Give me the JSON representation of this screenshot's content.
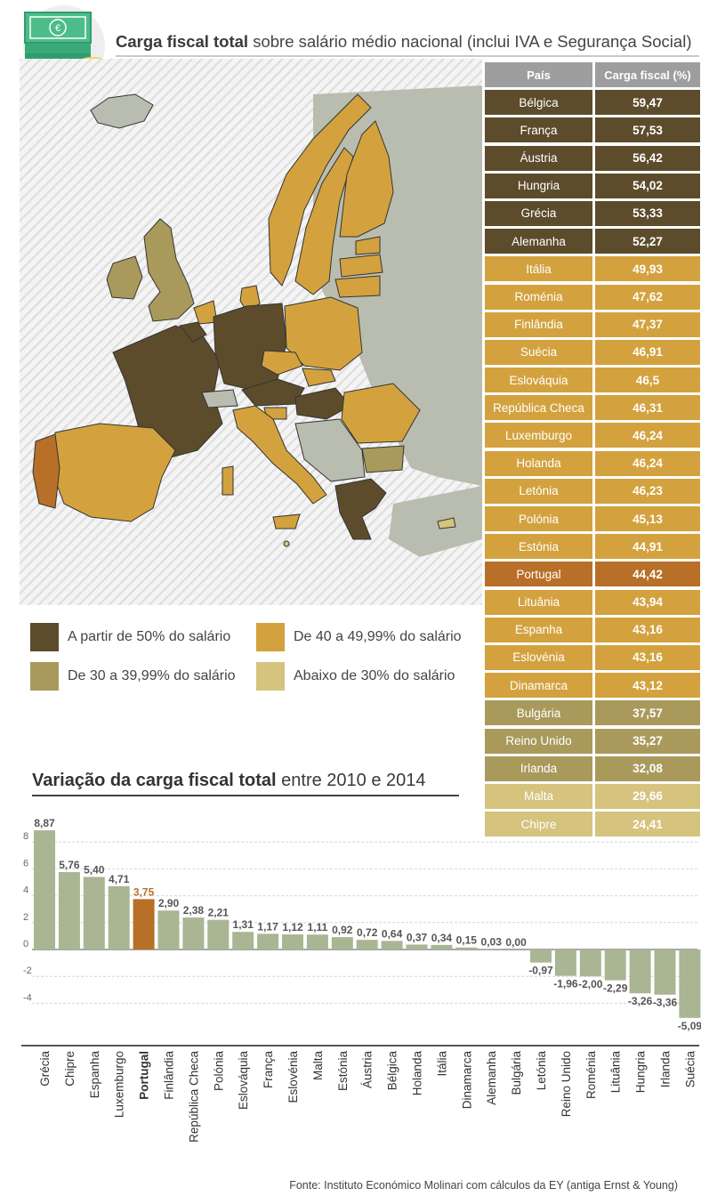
{
  "header": {
    "title_bold": "Carga fiscal total",
    "title_rest": "sobre salário médio nacional (inclui IVA e Segurança Social)"
  },
  "table": {
    "col1": "País",
    "col2": "Carga fiscal (%)",
    "rows": [
      {
        "country": "Bélgica",
        "value": "59,47",
        "group": "g1"
      },
      {
        "country": "França",
        "value": "57,53",
        "group": "g1"
      },
      {
        "country": "Áustria",
        "value": "56,42",
        "group": "g1"
      },
      {
        "country": "Hungria",
        "value": "54,02",
        "group": "g1"
      },
      {
        "country": "Grécia",
        "value": "53,33",
        "group": "g1"
      },
      {
        "country": "Alemanha",
        "value": "52,27",
        "group": "g1"
      },
      {
        "country": "Itália",
        "value": "49,93",
        "group": "g2"
      },
      {
        "country": "Roménia",
        "value": "47,62",
        "group": "g2"
      },
      {
        "country": "Finlândia",
        "value": "47,37",
        "group": "g2"
      },
      {
        "country": "Suécia",
        "value": "46,91",
        "group": "g2"
      },
      {
        "country": "Eslováquia",
        "value": "46,5",
        "group": "g2"
      },
      {
        "country": "República Checa",
        "value": "46,31",
        "group": "g2"
      },
      {
        "country": "Luxemburgo",
        "value": "46,24",
        "group": "g2"
      },
      {
        "country": "Holanda",
        "value": "46,24",
        "group": "g2"
      },
      {
        "country": "Letónia",
        "value": "46,23",
        "group": "g2"
      },
      {
        "country": "Polónia",
        "value": "45,13",
        "group": "g2"
      },
      {
        "country": "Estónia",
        "value": "44,91",
        "group": "g2"
      },
      {
        "country": "Portugal",
        "value": "44,42",
        "group": "pt"
      },
      {
        "country": "Lituânia",
        "value": "43,94",
        "group": "g2"
      },
      {
        "country": "Espanha",
        "value": "43,16",
        "group": "g2"
      },
      {
        "country": "Eslovénia",
        "value": "43,16",
        "group": "g2"
      },
      {
        "country": "Dinamarca",
        "value": "43,12",
        "group": "g2"
      },
      {
        "country": "Bulgária",
        "value": "37,57",
        "group": "g3"
      },
      {
        "country": "Reino Unido",
        "value": "35,27",
        "group": "g3"
      },
      {
        "country": "Irlanda",
        "value": "32,08",
        "group": "g3"
      },
      {
        "country": "Malta",
        "value": "29,66",
        "group": "g4"
      },
      {
        "country": "Chipre",
        "value": "24,41",
        "group": "g4"
      }
    ]
  },
  "legend": {
    "g1": "A partir de 50% do salário",
    "g2": "De 40 a 49,99% do salário",
    "g3": "De 30 a 39,99% do salário",
    "g4": "Abaixo de 30% do salário"
  },
  "colors": {
    "g1": "#5c4c2c",
    "g2": "#d3a23e",
    "g3": "#a99a5c",
    "g4": "#d5c37e",
    "pt": "#b86f28",
    "bar": "#a9b593",
    "bar_pt": "#b86f28",
    "map_other": "#b9bdb0",
    "map_bg": "#e5e5e5",
    "header": "#9e9e9e"
  },
  "chart_title": {
    "bold": "Variação da carga fiscal total",
    "rest": "entre 2010 e 2014"
  },
  "chart_data": {
    "type": "bar",
    "categories": [
      "Grécia",
      "Chipre",
      "Espanha",
      "Luxemburgo",
      "Portugal",
      "Finlândia",
      "República Checa",
      "Polónia",
      "Eslováquia",
      "França",
      "Eslovénia",
      "Malta",
      "Estónia",
      "Áustria",
      "Bélgica",
      "Holanda",
      "Itália",
      "Dinamarca",
      "Alemanha",
      "Bulgária",
      "Letónia",
      "Reino Unido",
      "Roménia",
      "Lituânia",
      "Hungria",
      "Irlanda",
      "Suécia"
    ],
    "values": [
      8.87,
      5.76,
      5.4,
      4.71,
      3.75,
      2.9,
      2.38,
      2.21,
      1.31,
      1.17,
      1.12,
      1.11,
      0.92,
      0.72,
      0.64,
      0.37,
      0.34,
      0.15,
      0.03,
      0.0,
      -0.97,
      -1.96,
      -2.0,
      -2.29,
      -3.26,
      -3.36,
      -5.09
    ],
    "labels": [
      "8,87",
      "5,76",
      "5,40",
      "4,71",
      "3,75",
      "2,90",
      "2,38",
      "2,21",
      "1,31",
      "1,17",
      "1,12",
      "1,11",
      "0,92",
      "0,72",
      "0,64",
      "0,37",
      "0,34",
      "0,15",
      "0,03",
      "0,00",
      "-0,97",
      "-1,96",
      "-2,00",
      "-2,29",
      "-3,26",
      "-3,36",
      "-5,09"
    ],
    "highlight": "Portugal",
    "yticks": [
      8,
      6,
      4,
      2,
      0,
      -2,
      -4
    ],
    "ylim": [
      -6,
      9
    ],
    "grid": true
  },
  "source": "Fonte: Instituto Económico Molinari com cálculos da EY (antiga Ernst & Young)"
}
